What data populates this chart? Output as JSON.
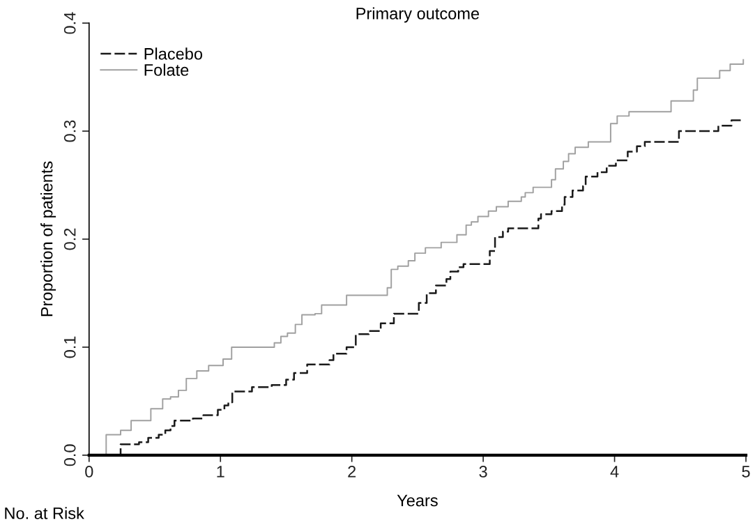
{
  "chart_data": {
    "type": "step",
    "title": "Primary outcome",
    "xlabel": "Years",
    "ylabel": "Proportion of patients",
    "annotations": [
      "No. at Risk"
    ],
    "xlim": [
      0,
      5
    ],
    "ylim": [
      0,
      0.4
    ],
    "xticks": [
      0,
      1,
      2,
      3,
      4,
      5
    ],
    "yticks": [
      {
        "value": 0,
        "label": "0.0"
      },
      {
        "value": 0.1,
        "label": "0.1"
      },
      {
        "value": 0.2,
        "label": "0.2"
      },
      {
        "value": 0.3,
        "label": "0.3"
      },
      {
        "value": 0.4,
        "label": "0.4"
      }
    ],
    "grid": false,
    "legend": "top left",
    "series": [
      {
        "name": "Placebo",
        "color": "#1a1a1a",
        "line_style": "dashed",
        "x": [
          0,
          0.24,
          0.38,
          0.45,
          0.53,
          0.58,
          0.62,
          0.65,
          0.79,
          0.87,
          0.98,
          1.03,
          1.06,
          1.09,
          1.24,
          1.39,
          1.5,
          1.56,
          1.66,
          1.83,
          1.86,
          1.96,
          2.03,
          2.13,
          2.22,
          2.32,
          2.51,
          2.57,
          2.64,
          2.72,
          2.75,
          2.81,
          2.85,
          3.05,
          3.09,
          3.15,
          3.19,
          3.42,
          3.44,
          3.52,
          3.6,
          3.62,
          3.68,
          3.76,
          3.78,
          3.87,
          3.94,
          4.01,
          4.1,
          4.17,
          4.23,
          4.49,
          4.79,
          4.89,
          4.98
        ],
        "values": [
          0,
          0.01,
          0.012,
          0.016,
          0.019,
          0.023,
          0.027,
          0.032,
          0.034,
          0.037,
          0.042,
          0.046,
          0.049,
          0.059,
          0.063,
          0.065,
          0.07,
          0.076,
          0.084,
          0.088,
          0.094,
          0.1,
          0.112,
          0.115,
          0.122,
          0.131,
          0.141,
          0.15,
          0.157,
          0.163,
          0.17,
          0.174,
          0.177,
          0.189,
          0.202,
          0.207,
          0.21,
          0.219,
          0.223,
          0.226,
          0.232,
          0.239,
          0.245,
          0.249,
          0.258,
          0.262,
          0.268,
          0.273,
          0.281,
          0.286,
          0.29,
          0.3,
          0.305,
          0.31,
          0.31
        ]
      },
      {
        "name": "Folate",
        "color": "#a0a0a0",
        "line_style": "solid",
        "x": [
          0,
          0.13,
          0.24,
          0.32,
          0.47,
          0.56,
          0.62,
          0.68,
          0.74,
          0.82,
          0.91,
          1.02,
          1.085,
          1.41,
          1.46,
          1.51,
          1.57,
          1.62,
          1.72,
          1.77,
          1.96,
          2.27,
          2.3,
          2.35,
          2.43,
          2.48,
          2.56,
          2.68,
          2.8,
          2.87,
          2.91,
          2.96,
          3.04,
          3.1,
          3.19,
          3.29,
          3.32,
          3.38,
          3.52,
          3.55,
          3.61,
          3.65,
          3.7,
          3.8,
          3.97,
          4.02,
          4.11,
          4.43,
          4.6,
          4.63,
          4.8,
          4.88,
          4.98
        ],
        "values": [
          0,
          0.019,
          0.023,
          0.032,
          0.043,
          0.052,
          0.054,
          0.06,
          0.071,
          0.078,
          0.083,
          0.089,
          0.1,
          0.104,
          0.11,
          0.113,
          0.121,
          0.13,
          0.131,
          0.139,
          0.148,
          0.155,
          0.172,
          0.175,
          0.18,
          0.187,
          0.192,
          0.197,
          0.204,
          0.213,
          0.216,
          0.221,
          0.226,
          0.23,
          0.235,
          0.239,
          0.243,
          0.248,
          0.255,
          0.265,
          0.272,
          0.279,
          0.285,
          0.29,
          0.307,
          0.314,
          0.318,
          0.328,
          0.338,
          0.349,
          0.356,
          0.362,
          0.366
        ]
      }
    ]
  }
}
